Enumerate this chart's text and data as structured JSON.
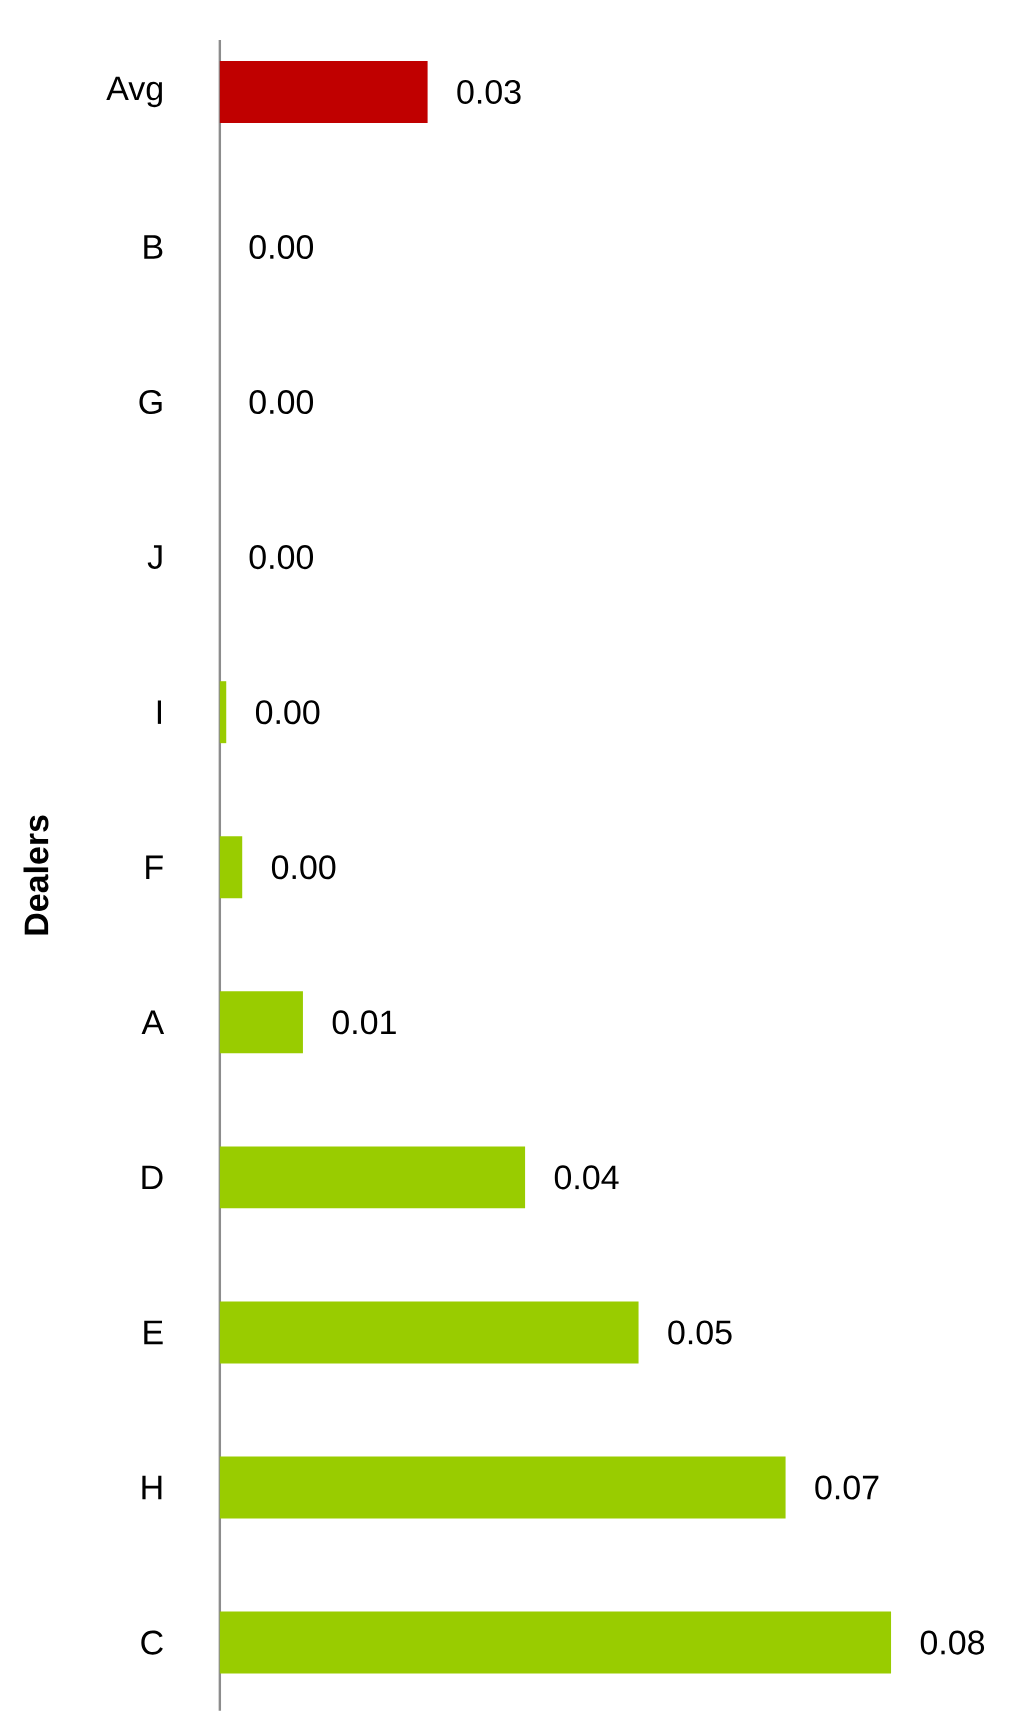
{
  "chart_data": {
    "type": "bar",
    "orientation": "horizontal",
    "ylabel": "Dealers",
    "categories": [
      "Avg",
      "B",
      "G",
      "J",
      "I",
      "F",
      "A",
      "D",
      "E",
      "H",
      "C"
    ],
    "values": [
      0.026,
      0,
      0,
      0,
      0.0008,
      0.0028,
      0.0104,
      0.0382,
      0.0524,
      0.0708,
      0.084
    ],
    "colors": [
      "#c00000",
      "#99cc00",
      "#99cc00",
      "#99cc00",
      "#99cc00",
      "#99cc00",
      "#99cc00",
      "#99cc00",
      "#99cc00",
      "#99cc00",
      "#99cc00"
    ],
    "value_labels": [
      "0.03",
      "0.00",
      "0.00",
      "0.00",
      "0.00",
      "0.00",
      "0.01",
      "0.04",
      "0.05",
      "0.07",
      "0.08"
    ]
  }
}
